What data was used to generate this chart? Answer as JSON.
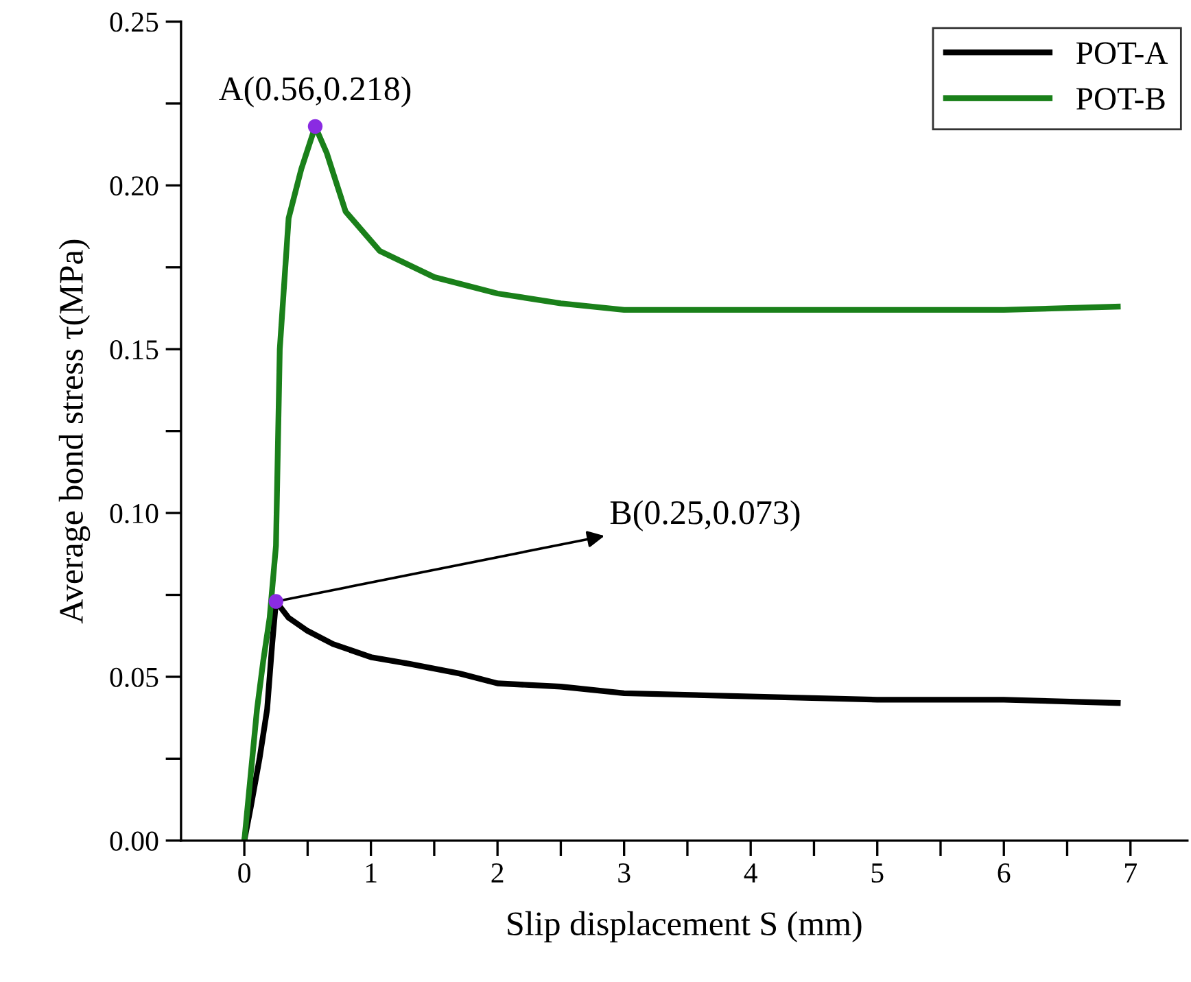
{
  "chart_data": {
    "type": "line",
    "xlabel": "Slip displacement S (mm)",
    "ylabel": "Average bond stress τ(MPa)",
    "xlim": [
      -0.5,
      7.45
    ],
    "ylim": [
      0,
      0.25
    ],
    "xticks": [
      0,
      {
        "value": 0.5,
        "label": null
      },
      1,
      {
        "value": 1.5,
        "label": null
      },
      2,
      {
        "value": 2.5,
        "label": null
      },
      3,
      {
        "value": 3.5,
        "label": null
      },
      4,
      {
        "value": 4.5,
        "label": null
      },
      5,
      {
        "value": 5.5,
        "label": null
      },
      6,
      {
        "value": 6.5,
        "label": null
      },
      7
    ],
    "yticks": [
      {
        "value": 0,
        "label": "0.00"
      },
      {
        "value": 0.025,
        "label": null
      },
      {
        "value": 0.05,
        "label": "0.05"
      },
      {
        "value": 0.075,
        "label": null
      },
      {
        "value": 0.1,
        "label": "0.10"
      },
      {
        "value": 0.125,
        "label": null
      },
      {
        "value": 0.15,
        "label": "0.15"
      },
      {
        "value": 0.175,
        "label": null
      },
      {
        "value": 0.2,
        "label": "0.20"
      },
      {
        "value": 0.225,
        "label": null
      },
      {
        "value": 0.25,
        "label": "0.25"
      }
    ],
    "grid": false,
    "legend": "top right",
    "line_style": "solid",
    "series": [
      {
        "name": "POT-A",
        "color": "#000000",
        "x": [
          0,
          0.05,
          0.12,
          0.18,
          0.22,
          0.25,
          0.35,
          0.5,
          0.7,
          1,
          1.3,
          1.7,
          2,
          2.5,
          3,
          4,
          5,
          6,
          6.9
        ],
        "values": [
          0,
          0.01,
          0.025,
          0.04,
          0.06,
          0.073,
          0.068,
          0.064,
          0.06,
          0.056,
          0.054,
          0.051,
          0.048,
          0.047,
          0.045,
          0.044,
          0.043,
          0.043,
          0.042
        ]
      },
      {
        "name": "POT-B",
        "color": "#1a801a",
        "x": [
          0,
          0.05,
          0.1,
          0.15,
          0.2,
          0.25,
          0.28,
          0.35,
          0.45,
          0.56,
          0.65,
          0.8,
          1.07,
          1.5,
          2,
          2.5,
          3,
          4,
          5,
          6,
          6.9
        ],
        "values": [
          0,
          0.02,
          0.04,
          0.055,
          0.068,
          0.09,
          0.15,
          0.19,
          0.205,
          0.218,
          0.21,
          0.192,
          0.18,
          0.172,
          0.167,
          0.164,
          0.162,
          0.162,
          0.162,
          0.162,
          0.163
        ]
      },
      {
        "type": "scatter",
        "marker": "circle",
        "color": "#8a2be2",
        "x": [
          0.56,
          0.25
        ],
        "values": [
          0.218,
          0.073
        ]
      }
    ],
    "annotations": [
      {
        "text": "A(0.56,0.218)",
        "x": 0.56,
        "y": 0.218
      },
      {
        "text": "B(0.25,0.073)",
        "x": 0.25,
        "y": 0.073
      }
    ]
  }
}
